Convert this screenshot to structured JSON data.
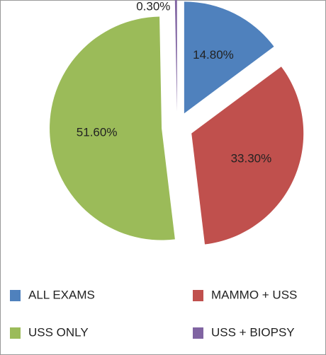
{
  "chart_data": {
    "type": "pie",
    "categories": [
      "ALL EXAMS",
      "MAMMO + USS",
      "USS ONLY",
      "USS + BIOPSY"
    ],
    "values": [
      14.8,
      33.3,
      51.6,
      0.3
    ],
    "value_labels": [
      "14.80%",
      "33.30%",
      "51.60%",
      "0.30%"
    ],
    "colors": [
      "#4f81bd",
      "#c0504d",
      "#9bbb59",
      "#8064a2"
    ],
    "exploded": true
  }
}
